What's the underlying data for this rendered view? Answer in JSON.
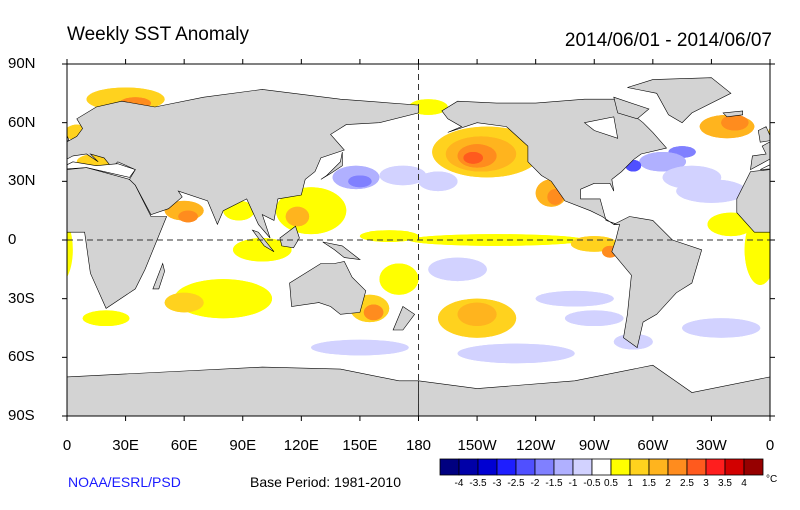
{
  "header": {
    "title": "Weekly SST Anomaly",
    "date_range": "2014/06/01 - 2014/06/07"
  },
  "map": {
    "projection": "cylindrical equidistant",
    "lat_labels": [
      "90N",
      "60N",
      "30N",
      "0",
      "30S",
      "60S",
      "90S"
    ],
    "lon_labels": [
      "0",
      "30E",
      "60E",
      "90E",
      "120E",
      "150E",
      "180",
      "150W",
      "120W",
      "90W",
      "60W",
      "30W",
      "0"
    ],
    "land_color": "#d3d3d3",
    "reference_lines": [
      "equator",
      "180 meridian"
    ]
  },
  "colorbar": {
    "labels": [
      "-4",
      "-3.5",
      "-3",
      "-2.5",
      "-2",
      "-1.5",
      "-1",
      "-0.5",
      "0.5",
      "1",
      "1.5",
      "2",
      "2.5",
      "3",
      "3.5",
      "4"
    ],
    "colors": [
      "#000080",
      "#0000a8",
      "#0000d2",
      "#1e1eff",
      "#5050ff",
      "#8080ff",
      "#b0b0ff",
      "#d2d2ff",
      "#ffffff",
      "#ffff00",
      "#ffd21e",
      "#ffb41e",
      "#ff8c1e",
      "#ff5a1e",
      "#ff1e1e",
      "#d20000",
      "#960000"
    ],
    "unit": "°C"
  },
  "footer": {
    "credit": "NOAA/ESRL/PSD",
    "base_period": "Base Period: 1981-2010"
  }
}
